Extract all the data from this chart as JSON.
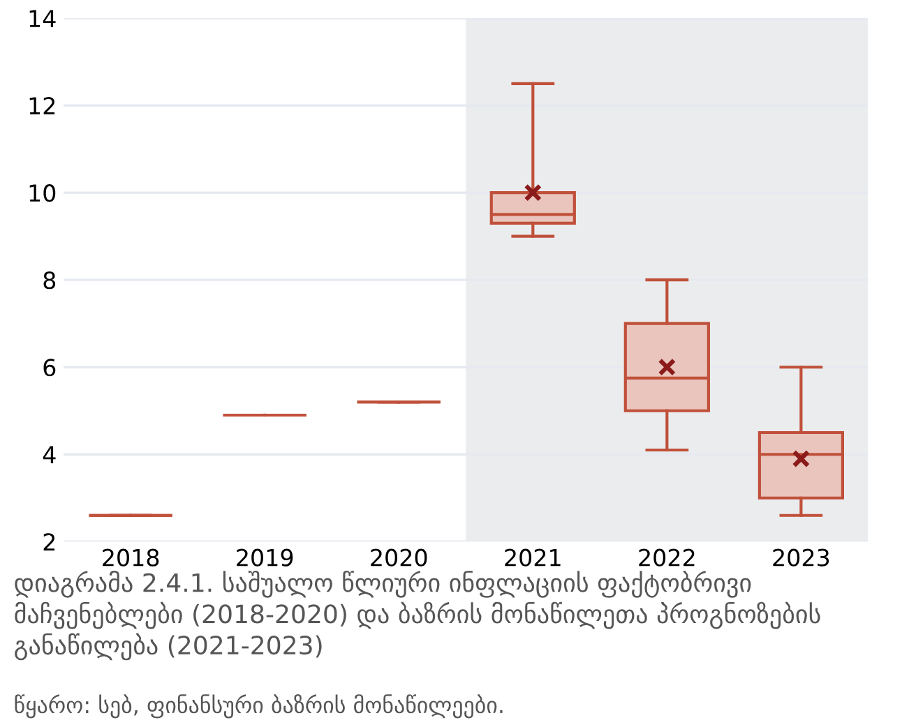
{
  "chart_data": {
    "type": "box",
    "title": "დიაგრამა 2.4.1. საშუალო წლიური ინფლაციის ფაქტობრივი მაჩვენებლები (2018-2020) და ბაზრის მონაწილეთა პროგნოზების განაწილება (2021-2023)",
    "annotations": [
      "წყარო: სებ, ფინანსური ბაზრის მონაწილეები."
    ],
    "categories": [
      "2018",
      "2019",
      "2020",
      "2021",
      "2022",
      "2023"
    ],
    "boxes": [
      {
        "low": 2.6,
        "q1": 2.6,
        "median": 2.6,
        "q3": 2.6,
        "high": 2.6
      },
      {
        "low": 4.9,
        "q1": 4.9,
        "median": 4.9,
        "q3": 4.9,
        "high": 4.9
      },
      {
        "low": 5.2,
        "q1": 5.2,
        "median": 5.2,
        "q3": 5.2,
        "high": 5.2
      },
      {
        "low": 9.0,
        "q1": 9.3,
        "median": 9.5,
        "q3": 10.0,
        "high": 12.5,
        "mean": 10.0
      },
      {
        "low": 4.1,
        "q1": 5.0,
        "median": 5.75,
        "q3": 7.0,
        "high": 8.0,
        "mean": 6.0
      },
      {
        "low": 2.6,
        "q1": 3.0,
        "median": 4.0,
        "q3": 4.5,
        "high": 6.0,
        "mean": 3.9
      }
    ],
    "color": "#c0503a",
    "bands": [
      {
        "axis": "x",
        "from": "2021",
        "to": "2023",
        "color": "#ebecee"
      }
    ],
    "ylim": [
      2,
      14
    ],
    "yticks": [
      2,
      4,
      6,
      8,
      10,
      12,
      14
    ],
    "grid": "y",
    "marker": "cross"
  }
}
